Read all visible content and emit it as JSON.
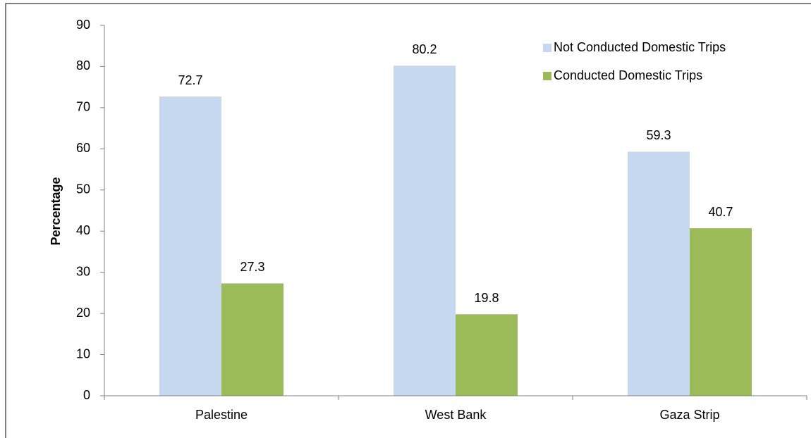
{
  "chart_data": {
    "type": "bar",
    "y_label": "Percentage",
    "categories": [
      "Palestine",
      "West Bank",
      "Gaza Strip"
    ],
    "series": [
      {
        "name": "Not Conducted Domestic Trips",
        "color": "#c6d9f1",
        "values": [
          72.7,
          80.2,
          59.3
        ]
      },
      {
        "name": "Conducted Domestic Trips",
        "color": "#9bbb59",
        "values": [
          27.3,
          19.8,
          40.7
        ]
      }
    ],
    "ylim": [
      0,
      90
    ],
    "yticks": [
      0,
      10,
      20,
      30,
      40,
      50,
      60,
      70,
      80,
      90
    ],
    "legend": "upper right"
  }
}
